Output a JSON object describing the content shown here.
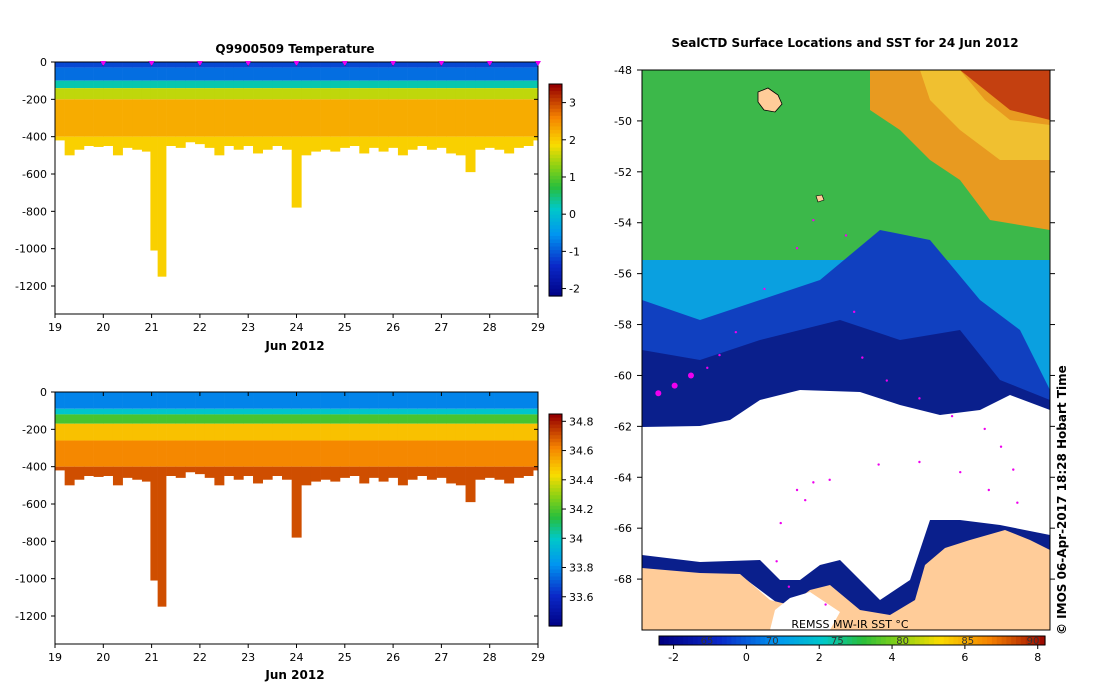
{
  "chart_data": [
    {
      "type": "heatmap",
      "title": "Q9900509  Temperature",
      "xlabel": "Jun 2012",
      "ylabel": "",
      "xlim": [
        19,
        29
      ],
      "ylim": [
        -1350,
        0
      ],
      "xticks": [
        "19",
        "20",
        "21",
        "22",
        "23",
        "24",
        "25",
        "26",
        "27",
        "28",
        "29"
      ],
      "yticks": [
        "0",
        "-200",
        "-400",
        "-600",
        "-800",
        "-1000",
        "-1200"
      ],
      "colorbar": {
        "min": -2.2,
        "max": 3.5,
        "ticks": [
          "3",
          "2",
          "1",
          "0",
          "-1",
          "-2"
        ]
      },
      "marker_days": [
        20,
        21,
        22,
        23,
        24,
        25,
        26,
        27,
        28,
        29
      ],
      "profiles": [
        {
          "day": 19.1,
          "depth": -420
        },
        {
          "day": 19.3,
          "depth": -500
        },
        {
          "day": 19.5,
          "depth": -470
        },
        {
          "day": 19.7,
          "depth": -450
        },
        {
          "day": 19.9,
          "depth": -455
        },
        {
          "day": 20.1,
          "depth": -450
        },
        {
          "day": 20.3,
          "depth": -500
        },
        {
          "day": 20.5,
          "depth": -460
        },
        {
          "day": 20.7,
          "depth": -470
        },
        {
          "day": 20.9,
          "depth": -480
        },
        {
          "day": 21.05,
          "depth": -1010
        },
        {
          "day": 21.2,
          "depth": -1150
        },
        {
          "day": 21.4,
          "depth": -450
        },
        {
          "day": 21.6,
          "depth": -460
        },
        {
          "day": 21.8,
          "depth": -430
        },
        {
          "day": 22.0,
          "depth": -440
        },
        {
          "day": 22.2,
          "depth": -460
        },
        {
          "day": 22.4,
          "depth": -500
        },
        {
          "day": 22.6,
          "depth": -450
        },
        {
          "day": 22.8,
          "depth": -470
        },
        {
          "day": 23.0,
          "depth": -450
        },
        {
          "day": 23.2,
          "depth": -490
        },
        {
          "day": 23.4,
          "depth": -470
        },
        {
          "day": 23.6,
          "depth": -450
        },
        {
          "day": 23.8,
          "depth": -470
        },
        {
          "day": 24.0,
          "depth": -780
        },
        {
          "day": 24.2,
          "depth": -500
        },
        {
          "day": 24.4,
          "depth": -480
        },
        {
          "day": 24.6,
          "depth": -470
        },
        {
          "day": 24.8,
          "depth": -480
        },
        {
          "day": 25.0,
          "depth": -460
        },
        {
          "day": 25.2,
          "depth": -450
        },
        {
          "day": 25.4,
          "depth": -490
        },
        {
          "day": 25.6,
          "depth": -460
        },
        {
          "day": 25.8,
          "depth": -480
        },
        {
          "day": 26.0,
          "depth": -460
        },
        {
          "day": 26.2,
          "depth": -500
        },
        {
          "day": 26.4,
          "depth": -470
        },
        {
          "day": 26.6,
          "depth": -450
        },
        {
          "day": 26.8,
          "depth": -470
        },
        {
          "day": 27.0,
          "depth": -460
        },
        {
          "day": 27.2,
          "depth": -490
        },
        {
          "day": 27.4,
          "depth": -500
        },
        {
          "day": 27.6,
          "depth": -590
        },
        {
          "day": 27.8,
          "depth": -470
        },
        {
          "day": 28.0,
          "depth": -460
        },
        {
          "day": 28.2,
          "depth": -470
        },
        {
          "day": 28.4,
          "depth": -490
        },
        {
          "day": 28.6,
          "depth": -460
        },
        {
          "day": 28.8,
          "depth": -450
        },
        {
          "day": 29.0,
          "depth": -420
        }
      ],
      "layers": [
        {
          "from": 0,
          "to": -30,
          "value": -1.1
        },
        {
          "from": -30,
          "to": -100,
          "value": -0.8
        },
        {
          "from": -100,
          "to": -140,
          "value": 0.3
        },
        {
          "from": -140,
          "to": -200,
          "value": 1.6
        },
        {
          "from": -200,
          "to": -400,
          "value": 2.3
        },
        {
          "from": -400,
          "to": -1200,
          "value": 2.0
        }
      ]
    },
    {
      "type": "heatmap",
      "title": "",
      "xlabel": "Jun 2012",
      "ylabel": "",
      "xlim": [
        19,
        29
      ],
      "ylim": [
        -1350,
        0
      ],
      "xticks": [
        "19",
        "20",
        "21",
        "22",
        "23",
        "24",
        "25",
        "26",
        "27",
        "28",
        "29"
      ],
      "yticks": [
        "0",
        "-200",
        "-400",
        "-600",
        "-800",
        "-1000",
        "-1200"
      ],
      "colorbar": {
        "min": 33.4,
        "max": 34.85,
        "ticks": [
          "34.8",
          "34.6",
          "34.4",
          "34.2",
          "34",
          "33.8",
          "33.6"
        ]
      },
      "layers": [
        {
          "from": 0,
          "to": -90,
          "value": 33.8
        },
        {
          "from": -90,
          "to": -120,
          "value": 34.0
        },
        {
          "from": -120,
          "to": -170,
          "value": 34.2
        },
        {
          "from": -170,
          "to": -260,
          "value": 34.5
        },
        {
          "from": -260,
          "to": -400,
          "value": 34.62
        },
        {
          "from": -400,
          "to": -1200,
          "value": 34.72
        }
      ]
    },
    {
      "type": "heatmap",
      "title": "SealCTD Surface Locations and SST for 24 Jun 2012",
      "xlabel": "",
      "ylabel": "",
      "ylim": [
        -70,
        -48
      ],
      "yticks": [
        "-48",
        "-50",
        "-52",
        "-54",
        "-56",
        "-58",
        "-60",
        "-62",
        "-64",
        "-66",
        "-68"
      ],
      "colorbar": {
        "label": "REMSS MW-IR SST °C",
        "min": -2.4,
        "max": 8.2,
        "ticks": [
          "-2",
          "0",
          "2",
          "4",
          "6",
          "8"
        ],
        "secondary_ticks": [
          "65",
          "70",
          "75",
          "80",
          "85",
          "90"
        ]
      },
      "track": [
        {
          "lon": 0.04,
          "lat": -60.7
        },
        {
          "lon": 0.08,
          "lat": -60.4
        },
        {
          "lon": 0.12,
          "lat": -60.0
        },
        {
          "lon": 0.16,
          "lat": -59.7
        },
        {
          "lon": 0.19,
          "lat": -59.2
        },
        {
          "lon": 0.23,
          "lat": -58.3
        },
        {
          "lon": 0.3,
          "lat": -56.6
        },
        {
          "lon": 0.38,
          "lat": -55.0
        },
        {
          "lon": 0.42,
          "lat": -53.9
        },
        {
          "lon": 0.44,
          "lat": -53.1
        },
        {
          "lon": 0.5,
          "lat": -54.5
        },
        {
          "lon": 0.52,
          "lat": -57.5
        },
        {
          "lon": 0.54,
          "lat": -59.3
        },
        {
          "lon": 0.6,
          "lat": -60.2
        },
        {
          "lon": 0.68,
          "lat": -60.9
        },
        {
          "lon": 0.76,
          "lat": -61.6
        },
        {
          "lon": 0.84,
          "lat": -62.1
        },
        {
          "lon": 0.88,
          "lat": -62.8
        },
        {
          "lon": 0.91,
          "lat": -63.7
        },
        {
          "lon": 0.92,
          "lat": -65.0
        },
        {
          "lon": 0.85,
          "lat": -64.5
        },
        {
          "lon": 0.78,
          "lat": -63.8
        },
        {
          "lon": 0.68,
          "lat": -63.4
        },
        {
          "lon": 0.58,
          "lat": -63.5
        },
        {
          "lon": 0.46,
          "lat": -64.1
        },
        {
          "lon": 0.38,
          "lat": -64.5
        },
        {
          "lon": 0.42,
          "lat": -64.2
        },
        {
          "lon": 0.4,
          "lat": -64.9
        },
        {
          "lon": 0.34,
          "lat": -65.8
        },
        {
          "lon": 0.33,
          "lat": -67.3
        },
        {
          "lon": 0.36,
          "lat": -68.3
        },
        {
          "lon": 0.45,
          "lat": -69.0
        }
      ]
    }
  ],
  "watermark": "© IMOS 06-Apr-2017 18:28 Hobart Time",
  "colors": {
    "background": "#ffffff",
    "track": "#ee00ee",
    "land": "#ffcc99",
    "ice": "#ffffff",
    "coast_band": "#0a1f8c"
  }
}
